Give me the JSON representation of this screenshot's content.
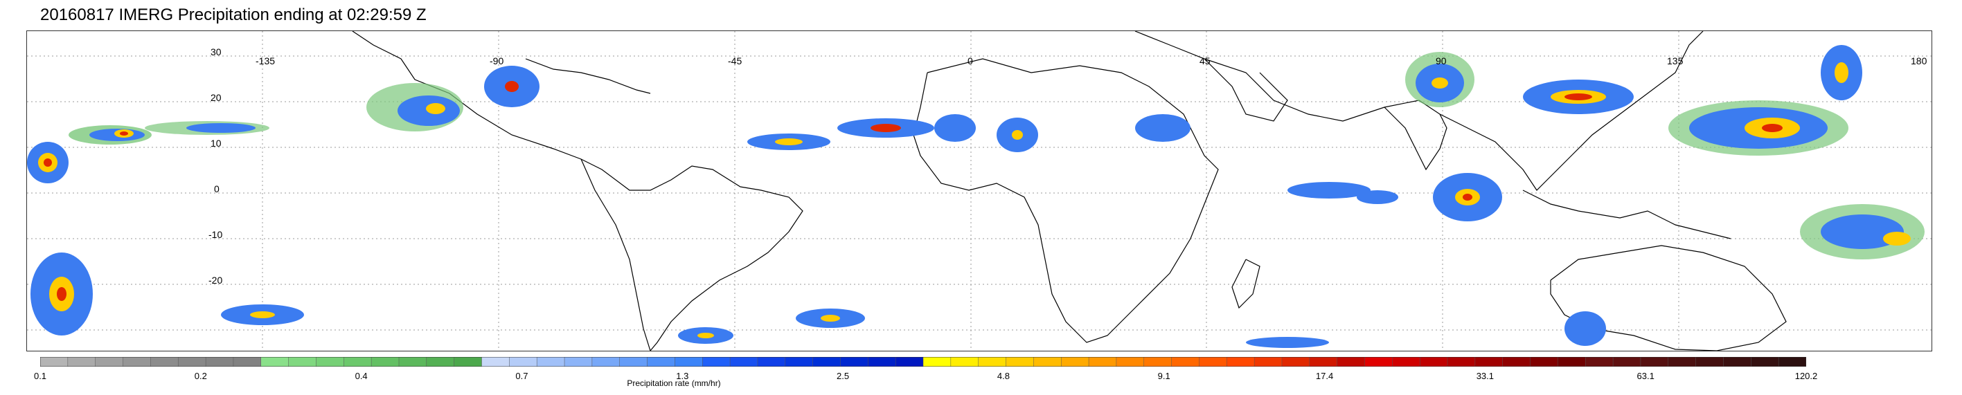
{
  "title": "20160817 IMERG Precipitation ending at 02:29:59 Z",
  "map": {
    "longitude_labels": [
      "-135",
      "-90",
      "-45",
      "0",
      "45",
      "90",
      "135",
      "180"
    ],
    "latitude_labels": [
      "30",
      "20",
      "10",
      "0",
      "-10",
      "-20"
    ],
    "grid": "dotted",
    "land_color": "#ffffff",
    "coastline_color": "#000000"
  },
  "colorbar": {
    "title": "Precipitation rate (mm/hr)",
    "tick_labels": [
      "0.1",
      "0.2",
      "0.4",
      "0.7",
      "1.3",
      "2.5",
      "4.8",
      "9.1",
      "17.4",
      "33.1",
      "63.1",
      "120.2"
    ],
    "colors": [
      "#b4b4b4",
      "#aaaaaa",
      "#a0a0a0",
      "#969696",
      "#8c8c8c",
      "#888888",
      "#848484",
      "#828282",
      "#8ae08a",
      "#80d880",
      "#76d076",
      "#6cc86c",
      "#64c064",
      "#5cb85c",
      "#54b054",
      "#4ca84c",
      "#c8d8f8",
      "#b4ccf8",
      "#a0c0f8",
      "#8cb4f8",
      "#78a8f8",
      "#649cf8",
      "#5090f8",
      "#3c84f8",
      "#2060f8",
      "#1850f0",
      "#1040e8",
      "#0838e0",
      "#0030d8",
      "#0028d0",
      "#0020c8",
      "#0018c0",
      "#ffff00",
      "#ffee00",
      "#ffdd00",
      "#ffcc00",
      "#ffbb00",
      "#ffaa00",
      "#ff9900",
      "#ff8800",
      "#ff7800",
      "#ff6800",
      "#ff5800",
      "#ff4800",
      "#f03800",
      "#e02800",
      "#d01800",
      "#c00800",
      "#e00000",
      "#d00000",
      "#c00000",
      "#b00000",
      "#a00000",
      "#900000",
      "#800000",
      "#700000",
      "#6a1010",
      "#601010",
      "#561010",
      "#4c1010",
      "#441010",
      "#3c1010",
      "#341010",
      "#2c1010"
    ]
  },
  "precipitation_legend_colors": {
    "light": "#7cc87c",
    "moderate": "#3c7cf0",
    "heavy": "#0020c8",
    "intense": "#ffcc00",
    "extreme": "#e02800"
  }
}
